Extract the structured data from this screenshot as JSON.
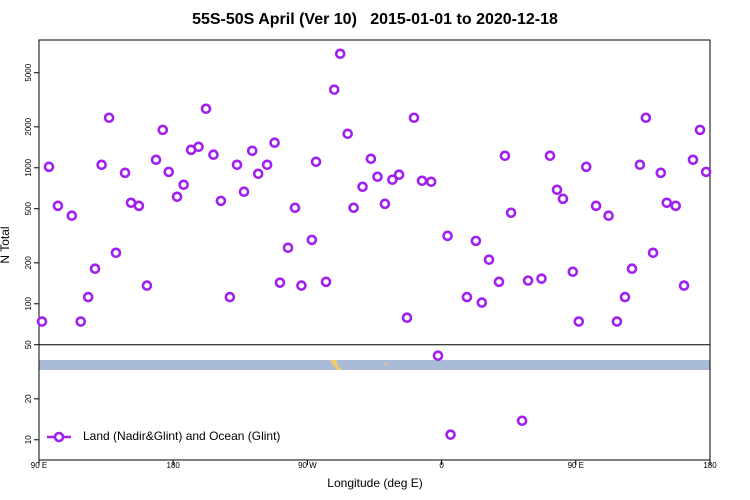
{
  "chart_data": {
    "type": "scatter",
    "title": "55S-50S April (Ver 10)   2015-01-01 to 2020-12-18",
    "x_label": "Longitude (deg E)",
    "y_label": "N Total",
    "log_y": true,
    "legend": "lower left",
    "xlim": [
      90,
      540
    ],
    "xticks": [
      {
        "value": 90,
        "label": "90 E"
      },
      {
        "value": 180,
        "label": "180"
      },
      {
        "value": 270,
        "label": "90 W"
      },
      {
        "value": 360,
        "label": "0"
      },
      {
        "value": 450,
        "label": "90 E"
      },
      {
        "value": 540,
        "label": "180"
      }
    ],
    "ylim": [
      7.1,
      8700
    ],
    "yticks": [
      10,
      20,
      50,
      100,
      200,
      500,
      1000,
      2000,
      5000
    ],
    "series": [
      {
        "name": "Land (Nadir&Glint) and Ocean (Glint)",
        "color": "#a020f0",
        "x": [
          92,
          96.7,
          102.7,
          112,
          118,
          123,
          127.6,
          132,
          137,
          141.6,
          147.7,
          151.7,
          157,
          162.4,
          168.5,
          173,
          177,
          182.6,
          187,
          192,
          197,
          202,
          207,
          212,
          218,
          222.8,
          227.5,
          233,
          237,
          243,
          248,
          251.6,
          257,
          261.7,
          266,
          273,
          275.8,
          282.5,
          288,
          292,
          297,
          301,
          307,
          312.6,
          317,
          322,
          327,
          331.5,
          336.8,
          341.5,
          346.9,
          353,
          357.6,
          364,
          366,
          377,
          383,
          387,
          391.8,
          398.5,
          402.5,
          406.6,
          414,
          418,
          427,
          432.7,
          437.4,
          441.4,
          448,
          452,
          457,
          463.6,
          472,
          477.6,
          483,
          487.7,
          493,
          497,
          501.8,
          507,
          511,
          517,
          522.6,
          528.6,
          533.3,
          537.4
        ],
        "values": [
          74,
          1016,
          525,
          444,
          74,
          112,
          181,
          1052,
          2333,
          237,
          918,
          553,
          525,
          136,
          1145,
          1900,
          933,
          612,
          750,
          1355,
          1426,
          2716,
          1247,
          571,
          112,
          1052,
          667,
          1333,
          903,
          1052,
          1528,
          143,
          258,
          508,
          136,
          295,
          1107,
          145,
          3752,
          6890,
          1778,
          508,
          725,
          1164,
          859,
          543,
          817,
          889,
          79,
          2333,
          802,
          789,
          41.5,
          316,
          10.9,
          112,
          290,
          102,
          211,
          145,
          1225,
          467,
          13.8,
          148,
          153,
          1225,
          689,
          591,
          172,
          74,
          1016,
          525,
          444,
          74,
          112,
          181,
          1052,
          2333,
          237,
          918,
          553,
          525,
          136,
          1145,
          1900,
          933
        ]
      }
    ]
  }
}
